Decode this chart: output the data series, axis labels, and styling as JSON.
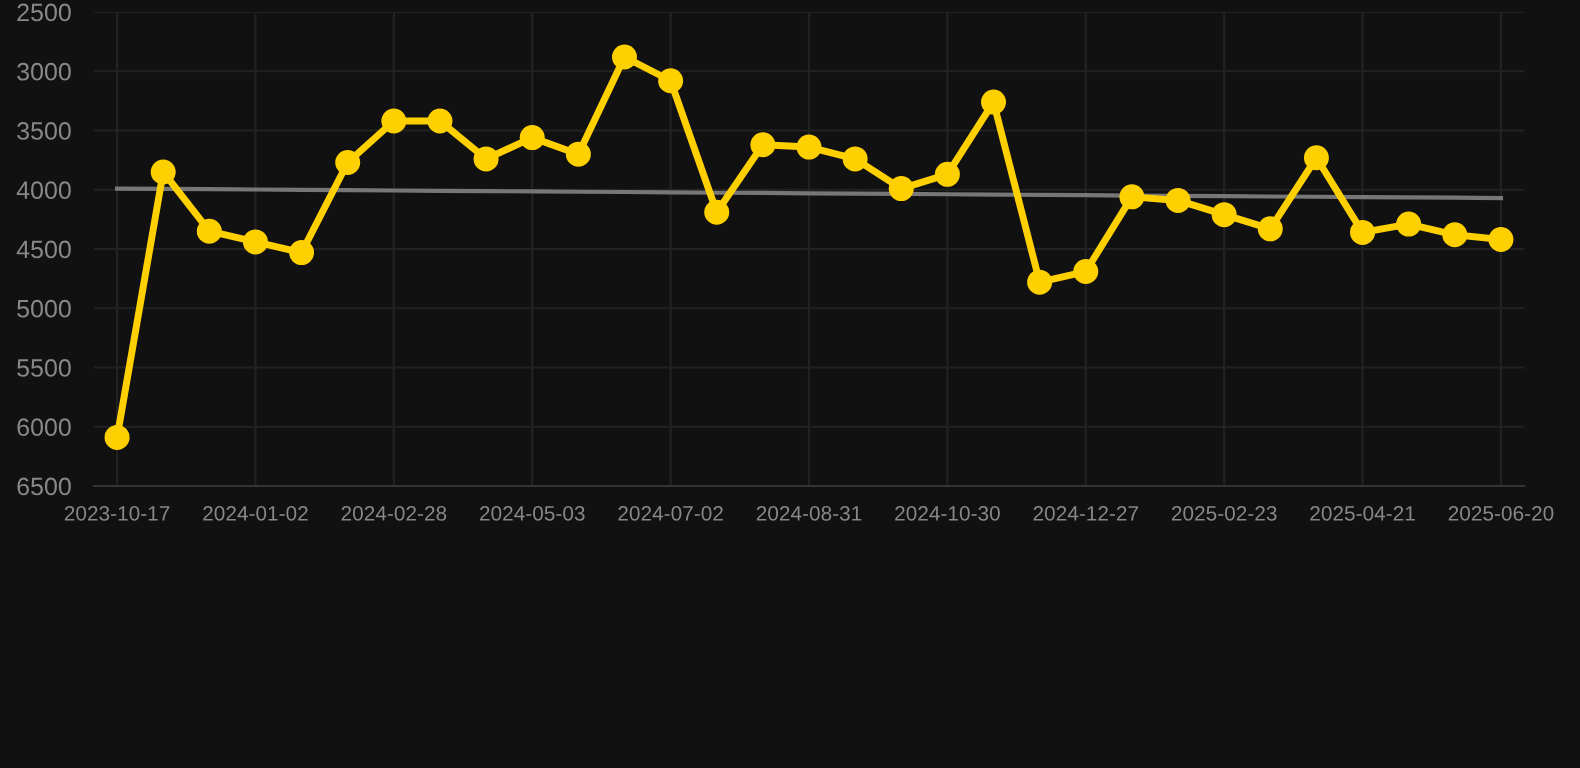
{
  "chart_data": {
    "type": "line",
    "categories": [
      "2023-10-17",
      null,
      null,
      "2024-01-02",
      null,
      null,
      "2024-02-28",
      null,
      null,
      "2024-05-03",
      null,
      null,
      "2024-07-02",
      null,
      null,
      "2024-08-31",
      null,
      null,
      "2024-10-30",
      null,
      null,
      "2024-12-27",
      null,
      null,
      "2025-02-23",
      null,
      null,
      "2025-04-21",
      null,
      null,
      "2025-06-20"
    ],
    "series": [
      {
        "color": "#ffd000",
        "marker": "circle",
        "values": [
          6090,
          3850,
          4350,
          4440,
          4530,
          3770,
          3420,
          3420,
          3740,
          3560,
          3700,
          2880,
          3080,
          4190,
          3620,
          3640,
          3740,
          3990,
          3870,
          3260,
          4780,
          4690,
          4060,
          4090,
          4210,
          4330,
          3730,
          4360,
          4290,
          4380,
          4420
        ]
      },
      {
        "type": "line",
        "color": "#777777",
        "marker": "none",
        "values": [
          3990,
          3993,
          3995,
          3998,
          4001,
          4003,
          4006,
          4009,
          4011,
          4014,
          4017,
          4019,
          4022,
          4025,
          4027,
          4030,
          4033,
          4035,
          4038,
          4041,
          4043,
          4046,
          4049,
          4051,
          4054,
          4057,
          4059,
          4062,
          4065,
          4067,
          4070
        ]
      }
    ],
    "ylim": [
      6500,
      2500
    ],
    "yticks": [
      2500,
      3000,
      3500,
      4000,
      4500,
      5000,
      5500,
      6000,
      6500
    ],
    "grid": true,
    "line_style": "solid"
  }
}
